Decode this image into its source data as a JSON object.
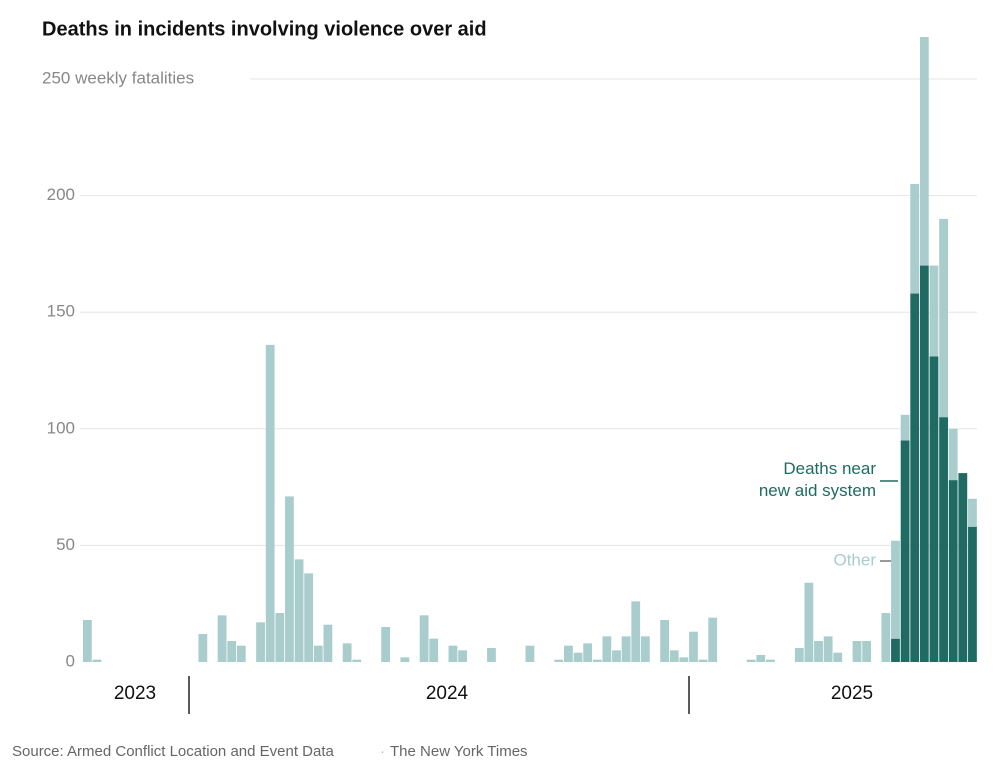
{
  "chart_data": {
    "type": "stacked_bar",
    "title": "Deaths in incidents involving violence over aid",
    "categories": [
      null,
      null,
      null,
      null,
      null,
      null,
      null,
      null,
      null,
      null,
      null,
      null,
      null,
      null,
      null,
      null,
      null,
      null,
      null,
      null,
      null,
      null,
      null,
      null,
      null,
      null,
      null,
      null,
      null,
      null,
      null,
      null,
      null,
      null,
      null,
      null,
      null,
      null,
      null,
      null,
      null,
      null,
      null,
      null,
      null,
      null,
      null,
      null,
      null,
      null,
      null,
      null,
      null,
      null,
      null,
      null,
      null,
      null,
      null,
      null,
      null,
      null,
      null,
      null,
      null,
      null,
      null,
      null,
      null,
      null,
      null,
      null,
      null,
      null,
      null,
      null,
      null,
      null,
      null,
      null,
      null,
      null,
      null,
      null,
      null,
      null,
      null,
      null,
      null,
      null,
      null,
      null,
      null
    ],
    "series": [
      {
        "name": "Deaths near new aid system",
        "color": "#1f6b63",
        "values": [
          0,
          0,
          0,
          0,
          0,
          0,
          0,
          0,
          0,
          0,
          0,
          0,
          0,
          0,
          0,
          0,
          0,
          0,
          0,
          0,
          0,
          0,
          0,
          0,
          0,
          0,
          0,
          0,
          0,
          0,
          0,
          0,
          0,
          0,
          0,
          0,
          0,
          0,
          0,
          0,
          0,
          0,
          0,
          0,
          0,
          0,
          0,
          0,
          0,
          0,
          0,
          0,
          0,
          0,
          0,
          0,
          0,
          0,
          0,
          0,
          0,
          0,
          0,
          0,
          0,
          0,
          0,
          0,
          0,
          0,
          0,
          0,
          0,
          0,
          0,
          0,
          0,
          0,
          0,
          0,
          0,
          0,
          0,
          0,
          10,
          95,
          158,
          170,
          131,
          105,
          78,
          81,
          58
        ]
      },
      {
        "name": "Other",
        "color": "#a9cdcc",
        "values": [
          18,
          1,
          0,
          0,
          0,
          0,
          0,
          0,
          0,
          0,
          0,
          0,
          12,
          0,
          20,
          9,
          7,
          0,
          17,
          136,
          21,
          71,
          44,
          38,
          7,
          16,
          0,
          8,
          1,
          0,
          0,
          15,
          0,
          2,
          0,
          20,
          10,
          0,
          7,
          5,
          0,
          0,
          6,
          0,
          0,
          0,
          7,
          0,
          0,
          1,
          7,
          4,
          8,
          1,
          11,
          5,
          11,
          26,
          11,
          0,
          18,
          5,
          2,
          13,
          1,
          19,
          0,
          0,
          0,
          1,
          3,
          1,
          0,
          0,
          6,
          34,
          9,
          11,
          4,
          0,
          9,
          9,
          0,
          21,
          42,
          11,
          47,
          98,
          39,
          85,
          22,
          0,
          12
        ]
      }
    ],
    "x_labels": [
      "2023",
      "2024",
      "2025"
    ],
    "ylim": [
      0,
      270
    ],
    "yticks": [
      0,
      50,
      100,
      150,
      200,
      {
        "value": 250,
        "label": "250 weekly fatalities"
      }
    ],
    "grid": true,
    "source": "Source: Armed Conflict Location and Event Data",
    "credit": "The New York Times"
  }
}
